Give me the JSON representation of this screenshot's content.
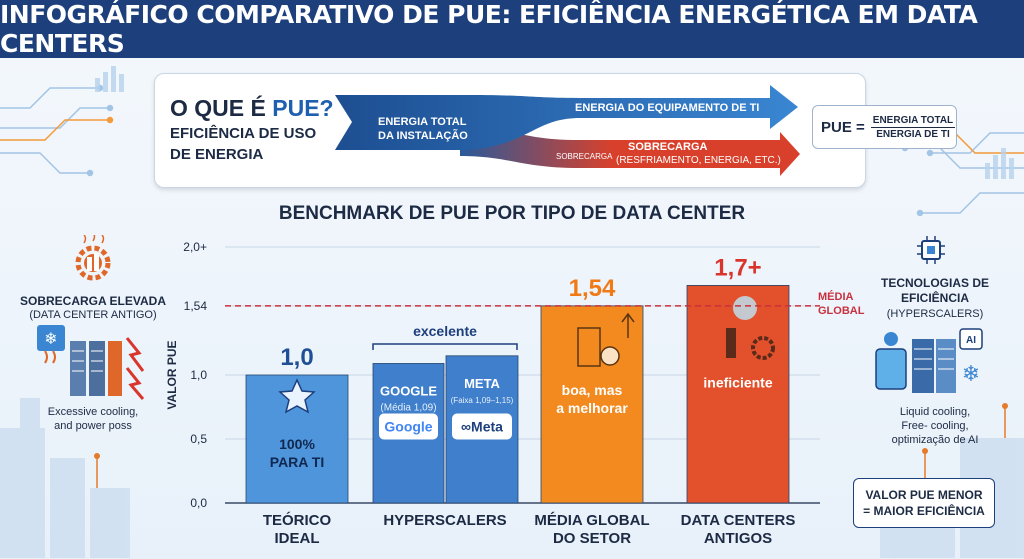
{
  "header": {
    "title": "INFOGRÁFICO COMPARATIVO DE PUE: EFICIÊNCIA ENERGÉTICA EM DATA CENTERS"
  },
  "definition": {
    "question_prefix": "O QUE É ",
    "question_highlight": "PUE?",
    "subtitle_line1": "EFICIÊNCIA DE USO",
    "subtitle_line2": "DE ENERGIA",
    "total_energy_line1": "ENERGIA TOTAL",
    "total_energy_line2": "DA INSTALAÇÃO",
    "it_energy": "ENERGIA DO EQUIPAMENTO DE TI",
    "overhead_small": "SOBRECARGA",
    "overhead_title": "SOBRECARGA",
    "overhead_detail": "(RESFRIAMENTO, ENERGIA, ETC.)",
    "formula_lhs": "PUE =",
    "formula_num": "ENERGIA TOTAL",
    "formula_den": "ENERGIA DE TI"
  },
  "left_panel": {
    "title": "SOBRECARGA ELEVADA",
    "subtitle": "(DATA CENTER ANTIGO)",
    "note_line1": "Excessive cooling,",
    "note_line2": "and power poss"
  },
  "right_panel": {
    "title_line1": "TECNOLOGIAS DE",
    "title_line2": "EFICIÊNCIA",
    "subtitle": "(HYPERSCALERS)",
    "note_line1": "Liquid cooling,",
    "note_line2": "Free- cooling,",
    "note_line3": "optimização de AI",
    "ai_chip_label": "AI",
    "bottom_line1": "VALOR PUE MENOR",
    "bottom_line2": "= MAIOR EFICIÊNCIA"
  },
  "chart_data": {
    "type": "bar",
    "title": "BENCHMARK DE PUE POR TIPO DE DATA CENTER",
    "ylabel": "VALOR PUE",
    "ylim": [
      0,
      2.0
    ],
    "yticks": [
      {
        "value": 0,
        "label": "0,0"
      },
      {
        "value": 0.5,
        "label": "0,5"
      },
      {
        "value": 1.0,
        "label": "1,0"
      },
      {
        "value": 1.54,
        "label": "1,54"
      },
      {
        "value": 2.0,
        "label": "2,0+"
      }
    ],
    "grid": true,
    "reference_line": {
      "value": 1.54,
      "label_line1": "MÉDIA",
      "label_line2": "GLOBAL",
      "color": "#c8313d"
    },
    "categories": [
      {
        "label_line1": "TEÓRICO",
        "label_line2": "IDEAL"
      },
      {
        "label_line1": "HYPERSCALERS",
        "label_line2": ""
      },
      {
        "label_line1": "MÉDIA GLOBAL",
        "label_line2": "DO SETOR"
      },
      {
        "label_line1": "DATA CENTERS",
        "label_line2": "ANTIGOS"
      }
    ],
    "bars": [
      {
        "category": 0,
        "value": 1.0,
        "label": "1,0",
        "label_color": "#1f4f94",
        "color": "#4f95dc",
        "inner_line1": "100%",
        "inner_line2": "PARA TI",
        "inner_color": "#10284f"
      },
      {
        "category": 1,
        "value": 1.09,
        "name": "GOOGLE",
        "sub": "(Média 1,09)",
        "logo": "Google",
        "color": "#3f7fcb"
      },
      {
        "category": 1,
        "value": 1.15,
        "name": "META",
        "sub": "(Faixa 1,09–1,15)",
        "logo": "Meta",
        "color": "#3f7fcb"
      },
      {
        "category": 2,
        "value": 1.54,
        "label": "1,54",
        "label_color": "#f07a16",
        "color": "#f28a1f",
        "inner_line1": "boa, mas",
        "inner_line2": "a melhorar",
        "inner_color": "#ffffff"
      },
      {
        "category": 3,
        "value": 1.7,
        "label": "1,7+",
        "label_color": "#d9352d",
        "color": "#e2512c",
        "inner_line1": "ineficiente",
        "inner_line2": "",
        "inner_color": "#ffffff"
      }
    ],
    "bracket_label": "excelente"
  },
  "colors": {
    "header": "#1d3f7c",
    "accent_blue": "#1f5fb0",
    "overhead_red": "#d9402b",
    "grid": "#c9d6e6"
  }
}
